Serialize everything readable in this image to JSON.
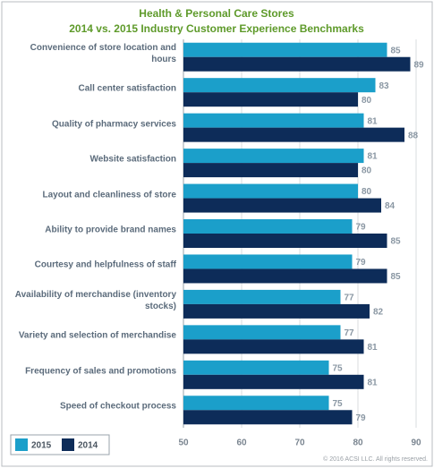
{
  "chart_data": {
    "type": "hbar",
    "title": "Health & Personal Care Stores",
    "subtitle": "2014 vs. 2015 Industry Customer Experience Benchmarks",
    "categories": [
      "Convenience of store location and hours",
      "Call center satisfaction",
      "Quality of pharmacy services",
      "Website satisfaction",
      "Layout and cleanliness of store",
      "Ability to provide brand names",
      "Courtesy and helpfulness of staff",
      "Availability of merchandise (inventory stocks)",
      "Variety and selection of merchandise",
      "Frequency of sales and promotions",
      "Speed of checkout process"
    ],
    "series": [
      {
        "name": "2015",
        "color": "#1b9fca",
        "values": [
          85,
          83,
          81,
          81,
          80,
          79,
          79,
          77,
          77,
          75,
          75
        ]
      },
      {
        "name": "2014",
        "color": "#0d2c59",
        "values": [
          89,
          80,
          88,
          80,
          84,
          85,
          85,
          82,
          81,
          81,
          79
        ]
      }
    ],
    "xlim": [
      50,
      92
    ],
    "xticks": [
      50,
      60,
      70,
      80,
      90
    ],
    "grid": true,
    "note": "© 2016 ACSI LLC. All rights reserved."
  }
}
